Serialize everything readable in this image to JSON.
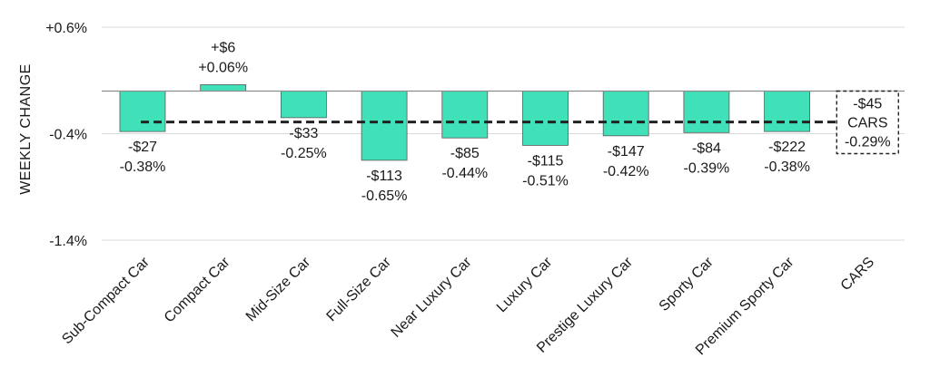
{
  "chart_data": {
    "type": "bar",
    "ylabel": "WEEKLY CHANGE",
    "ylim": [
      -1.4,
      0.6
    ],
    "yticks": [
      0.6,
      -0.4,
      -1.4
    ],
    "ytick_labels": [
      "+0.6%",
      "-0.4%",
      "-1.4%"
    ],
    "grid": true,
    "bar_color": "#40e0b8",
    "categories": [
      "Sub-Compact Car",
      "Compact Car",
      "Mid-Size Car",
      "Full-Size Car",
      "Near Luxury Car",
      "Luxury Car",
      "Prestige Luxury Car",
      "Sporty Car",
      "Premium Sporty Car",
      "CARS"
    ],
    "values": [
      -0.38,
      0.06,
      -0.25,
      -0.65,
      -0.44,
      -0.51,
      -0.42,
      -0.39,
      -0.38,
      -0.29
    ],
    "dollar_labels": [
      "-$27",
      "+$6",
      "-$33",
      "-$113",
      "-$85",
      "-$115",
      "-$147",
      "-$84",
      "-$222",
      "-$45"
    ],
    "percent_labels": [
      "-0.38%",
      "+0.06%",
      "-0.25%",
      "-0.65%",
      "-0.44%",
      "-0.51%",
      "-0.42%",
      "-0.39%",
      "-0.38%",
      "-0.29%"
    ],
    "average": {
      "value": -0.29,
      "category": "CARS",
      "label_top": "-$45",
      "label_mid": "CARS",
      "label_bottom": "-0.29%",
      "style": "dashed"
    }
  }
}
